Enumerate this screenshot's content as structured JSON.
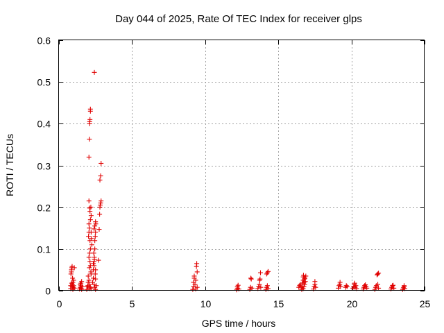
{
  "chart_data": {
    "type": "scatter",
    "title": "Day 044 of 2025, Rate Of TEC Index for receiver glps",
    "xlabel": "GPS time / hours",
    "ylabel": "ROTI / TECUs",
    "xlim": [
      0,
      25
    ],
    "ylim": [
      0,
      0.6
    ],
    "xticks": [
      0,
      5,
      10,
      15,
      20,
      25
    ],
    "xtick_labels": [
      "0",
      "5",
      "10",
      "15",
      "20",
      "25"
    ],
    "yticks": [
      0,
      0.1,
      0.2,
      0.3,
      0.4,
      0.5,
      0.6
    ],
    "ytick_labels": [
      "0",
      "0.1",
      "0.2",
      "0.3",
      "0.4",
      "0.5",
      "0.6"
    ],
    "grid": true,
    "marker": "+",
    "series": [
      {
        "name": "ROTI",
        "color": "#e00000",
        "points": [
          [
            0.8,
            0.005
          ],
          [
            0.8,
            0.012
          ],
          [
            0.82,
            0.04
          ],
          [
            0.85,
            0.045
          ],
          [
            0.85,
            0.05
          ],
          [
            0.88,
            0.055
          ],
          [
            0.9,
            0.058
          ],
          [
            0.9,
            0.01
          ],
          [
            0.92,
            0.015
          ],
          [
            0.95,
            0.02
          ],
          [
            0.95,
            0.003
          ],
          [
            0.98,
            0.008
          ],
          [
            1.0,
            0.012
          ],
          [
            1.0,
            0.025
          ],
          [
            1.05,
            0.006
          ],
          [
            1.05,
            0.055
          ],
          [
            0.87,
            0.018
          ],
          [
            0.93,
            0.03
          ],
          [
            1.4,
            0.004
          ],
          [
            1.45,
            0.008
          ],
          [
            1.5,
            0.012
          ],
          [
            1.5,
            0.018
          ],
          [
            1.55,
            0.022
          ],
          [
            1.55,
            0.003
          ],
          [
            1.6,
            0.01
          ],
          [
            1.45,
            0.015
          ],
          [
            1.52,
            0.006
          ],
          [
            1.9,
            0.003
          ],
          [
            1.95,
            0.01
          ],
          [
            2.0,
            0.02
          ],
          [
            2.0,
            0.035
          ],
          [
            2.02,
            0.13
          ],
          [
            2.05,
            0.14
          ],
          [
            2.05,
            0.32
          ],
          [
            2.08,
            0.363
          ],
          [
            2.1,
            0.4
          ],
          [
            2.1,
            0.405
          ],
          [
            2.12,
            0.41
          ],
          [
            2.15,
            0.43
          ],
          [
            2.15,
            0.435
          ],
          [
            2.1,
            0.198
          ],
          [
            2.12,
            0.19
          ],
          [
            2.15,
            0.17
          ],
          [
            2.05,
            0.16
          ],
          [
            2.08,
            0.15
          ],
          [
            2.12,
            0.12
          ],
          [
            2.15,
            0.1
          ],
          [
            2.1,
            0.09
          ],
          [
            2.05,
            0.08
          ],
          [
            2.12,
            0.07
          ],
          [
            2.15,
            0.06
          ],
          [
            2.08,
            0.055
          ],
          [
            2.18,
            0.045
          ],
          [
            2.2,
            0.04
          ],
          [
            2.05,
            0.025
          ],
          [
            2.1,
            0.015
          ],
          [
            2.15,
            0.008
          ],
          [
            2.2,
            0.005
          ],
          [
            2.2,
            0.14
          ],
          [
            2.22,
            0.125
          ],
          [
            2.25,
            0.11
          ],
          [
            2.18,
            0.2
          ],
          [
            2.2,
            0.18
          ],
          [
            2.05,
            0.215
          ],
          [
            2.1,
            0.005
          ],
          [
            1.98,
            0.012
          ],
          [
            2.3,
            0.02
          ],
          [
            2.35,
            0.03
          ],
          [
            2.35,
            0.05
          ],
          [
            2.4,
            0.06
          ],
          [
            2.4,
            0.07
          ],
          [
            2.42,
            0.08
          ],
          [
            2.45,
            0.1
          ],
          [
            2.45,
            0.12
          ],
          [
            2.48,
            0.13
          ],
          [
            2.5,
            0.14
          ],
          [
            2.5,
            0.165
          ],
          [
            2.52,
            0.16
          ],
          [
            2.45,
            0.155
          ],
          [
            2.4,
            0.148
          ],
          [
            2.38,
            0.09
          ],
          [
            2.42,
            0.075
          ],
          [
            2.35,
            0.065
          ],
          [
            2.5,
            0.05
          ],
          [
            2.48,
            0.04
          ],
          [
            2.4,
            0.015
          ],
          [
            2.45,
            0.008
          ],
          [
            2.5,
            0.003
          ],
          [
            2.42,
            0.523
          ],
          [
            2.55,
            0.012
          ],
          [
            2.5,
            0.028
          ],
          [
            2.7,
            0.073
          ],
          [
            2.75,
            0.147
          ],
          [
            2.78,
            0.183
          ],
          [
            2.8,
            0.2
          ],
          [
            2.82,
            0.205
          ],
          [
            2.85,
            0.21
          ],
          [
            2.88,
            0.215
          ],
          [
            2.8,
            0.265
          ],
          [
            2.85,
            0.275
          ],
          [
            2.88,
            0.305
          ],
          [
            9.15,
            0.003
          ],
          [
            9.2,
            0.01
          ],
          [
            9.2,
            0.02
          ],
          [
            9.25,
            0.03
          ],
          [
            9.25,
            0.035
          ],
          [
            9.3,
            0.015
          ],
          [
            9.35,
            0.025
          ],
          [
            9.4,
            0.058
          ],
          [
            9.42,
            0.065
          ],
          [
            9.45,
            0.045
          ],
          [
            9.45,
            0.008
          ],
          [
            9.35,
            0.004
          ],
          [
            12.15,
            0.002
          ],
          [
            12.2,
            0.006
          ],
          [
            12.2,
            0.01
          ],
          [
            12.25,
            0.013
          ],
          [
            12.3,
            0.004
          ],
          [
            13.05,
            0.003
          ],
          [
            13.1,
            0.008
          ],
          [
            13.12,
            0.03
          ],
          [
            13.15,
            0.028
          ],
          [
            13.2,
            0.006
          ],
          [
            13.6,
            0.005
          ],
          [
            13.65,
            0.01
          ],
          [
            13.7,
            0.015
          ],
          [
            13.72,
            0.025
          ],
          [
            13.75,
            0.028
          ],
          [
            13.78,
            0.043
          ],
          [
            13.8,
            0.008
          ],
          [
            14.15,
            0.003
          ],
          [
            14.2,
            0.008
          ],
          [
            14.25,
            0.012
          ],
          [
            14.2,
            0.04
          ],
          [
            14.25,
            0.043
          ],
          [
            14.3,
            0.046
          ],
          [
            14.3,
            0.005
          ],
          [
            16.4,
            0.008
          ],
          [
            16.45,
            0.012
          ],
          [
            16.5,
            0.015
          ],
          [
            16.55,
            0.01
          ],
          [
            16.6,
            0.003
          ],
          [
            16.65,
            0.01
          ],
          [
            16.65,
            0.018
          ],
          [
            16.7,
            0.025
          ],
          [
            16.7,
            0.033
          ],
          [
            16.72,
            0.037
          ],
          [
            16.75,
            0.02
          ],
          [
            16.78,
            0.028
          ],
          [
            16.8,
            0.015
          ],
          [
            16.82,
            0.03
          ],
          [
            16.85,
            0.022
          ],
          [
            16.88,
            0.035
          ],
          [
            16.7,
            0.005
          ],
          [
            16.75,
            0.01
          ],
          [
            17.4,
            0.004
          ],
          [
            17.45,
            0.01
          ],
          [
            17.5,
            0.015
          ],
          [
            17.5,
            0.022
          ],
          [
            17.55,
            0.008
          ],
          [
            19.1,
            0.006
          ],
          [
            19.15,
            0.012
          ],
          [
            19.2,
            0.015
          ],
          [
            19.22,
            0.02
          ],
          [
            19.25,
            0.01
          ],
          [
            19.6,
            0.008
          ],
          [
            19.65,
            0.012
          ],
          [
            19.7,
            0.01
          ],
          [
            20.1,
            0.006
          ],
          [
            20.15,
            0.01
          ],
          [
            20.2,
            0.015
          ],
          [
            20.22,
            0.018
          ],
          [
            20.25,
            0.008
          ],
          [
            20.3,
            0.012
          ],
          [
            20.35,
            0.005
          ],
          [
            20.8,
            0.004
          ],
          [
            20.85,
            0.008
          ],
          [
            20.9,
            0.012
          ],
          [
            20.95,
            0.014
          ],
          [
            21.0,
            0.01
          ],
          [
            21.05,
            0.006
          ],
          [
            21.6,
            0.003
          ],
          [
            21.65,
            0.008
          ],
          [
            21.7,
            0.012
          ],
          [
            21.75,
            0.038
          ],
          [
            21.8,
            0.04
          ],
          [
            21.85,
            0.042
          ],
          [
            21.8,
            0.015
          ],
          [
            21.85,
            0.006
          ],
          [
            22.7,
            0.004
          ],
          [
            22.75,
            0.008
          ],
          [
            22.8,
            0.012
          ],
          [
            22.85,
            0.013
          ],
          [
            22.9,
            0.006
          ],
          [
            23.5,
            0.003
          ],
          [
            23.55,
            0.007
          ],
          [
            23.6,
            0.01
          ],
          [
            23.6,
            0.012
          ],
          [
            23.65,
            0.005
          ]
        ]
      }
    ]
  }
}
